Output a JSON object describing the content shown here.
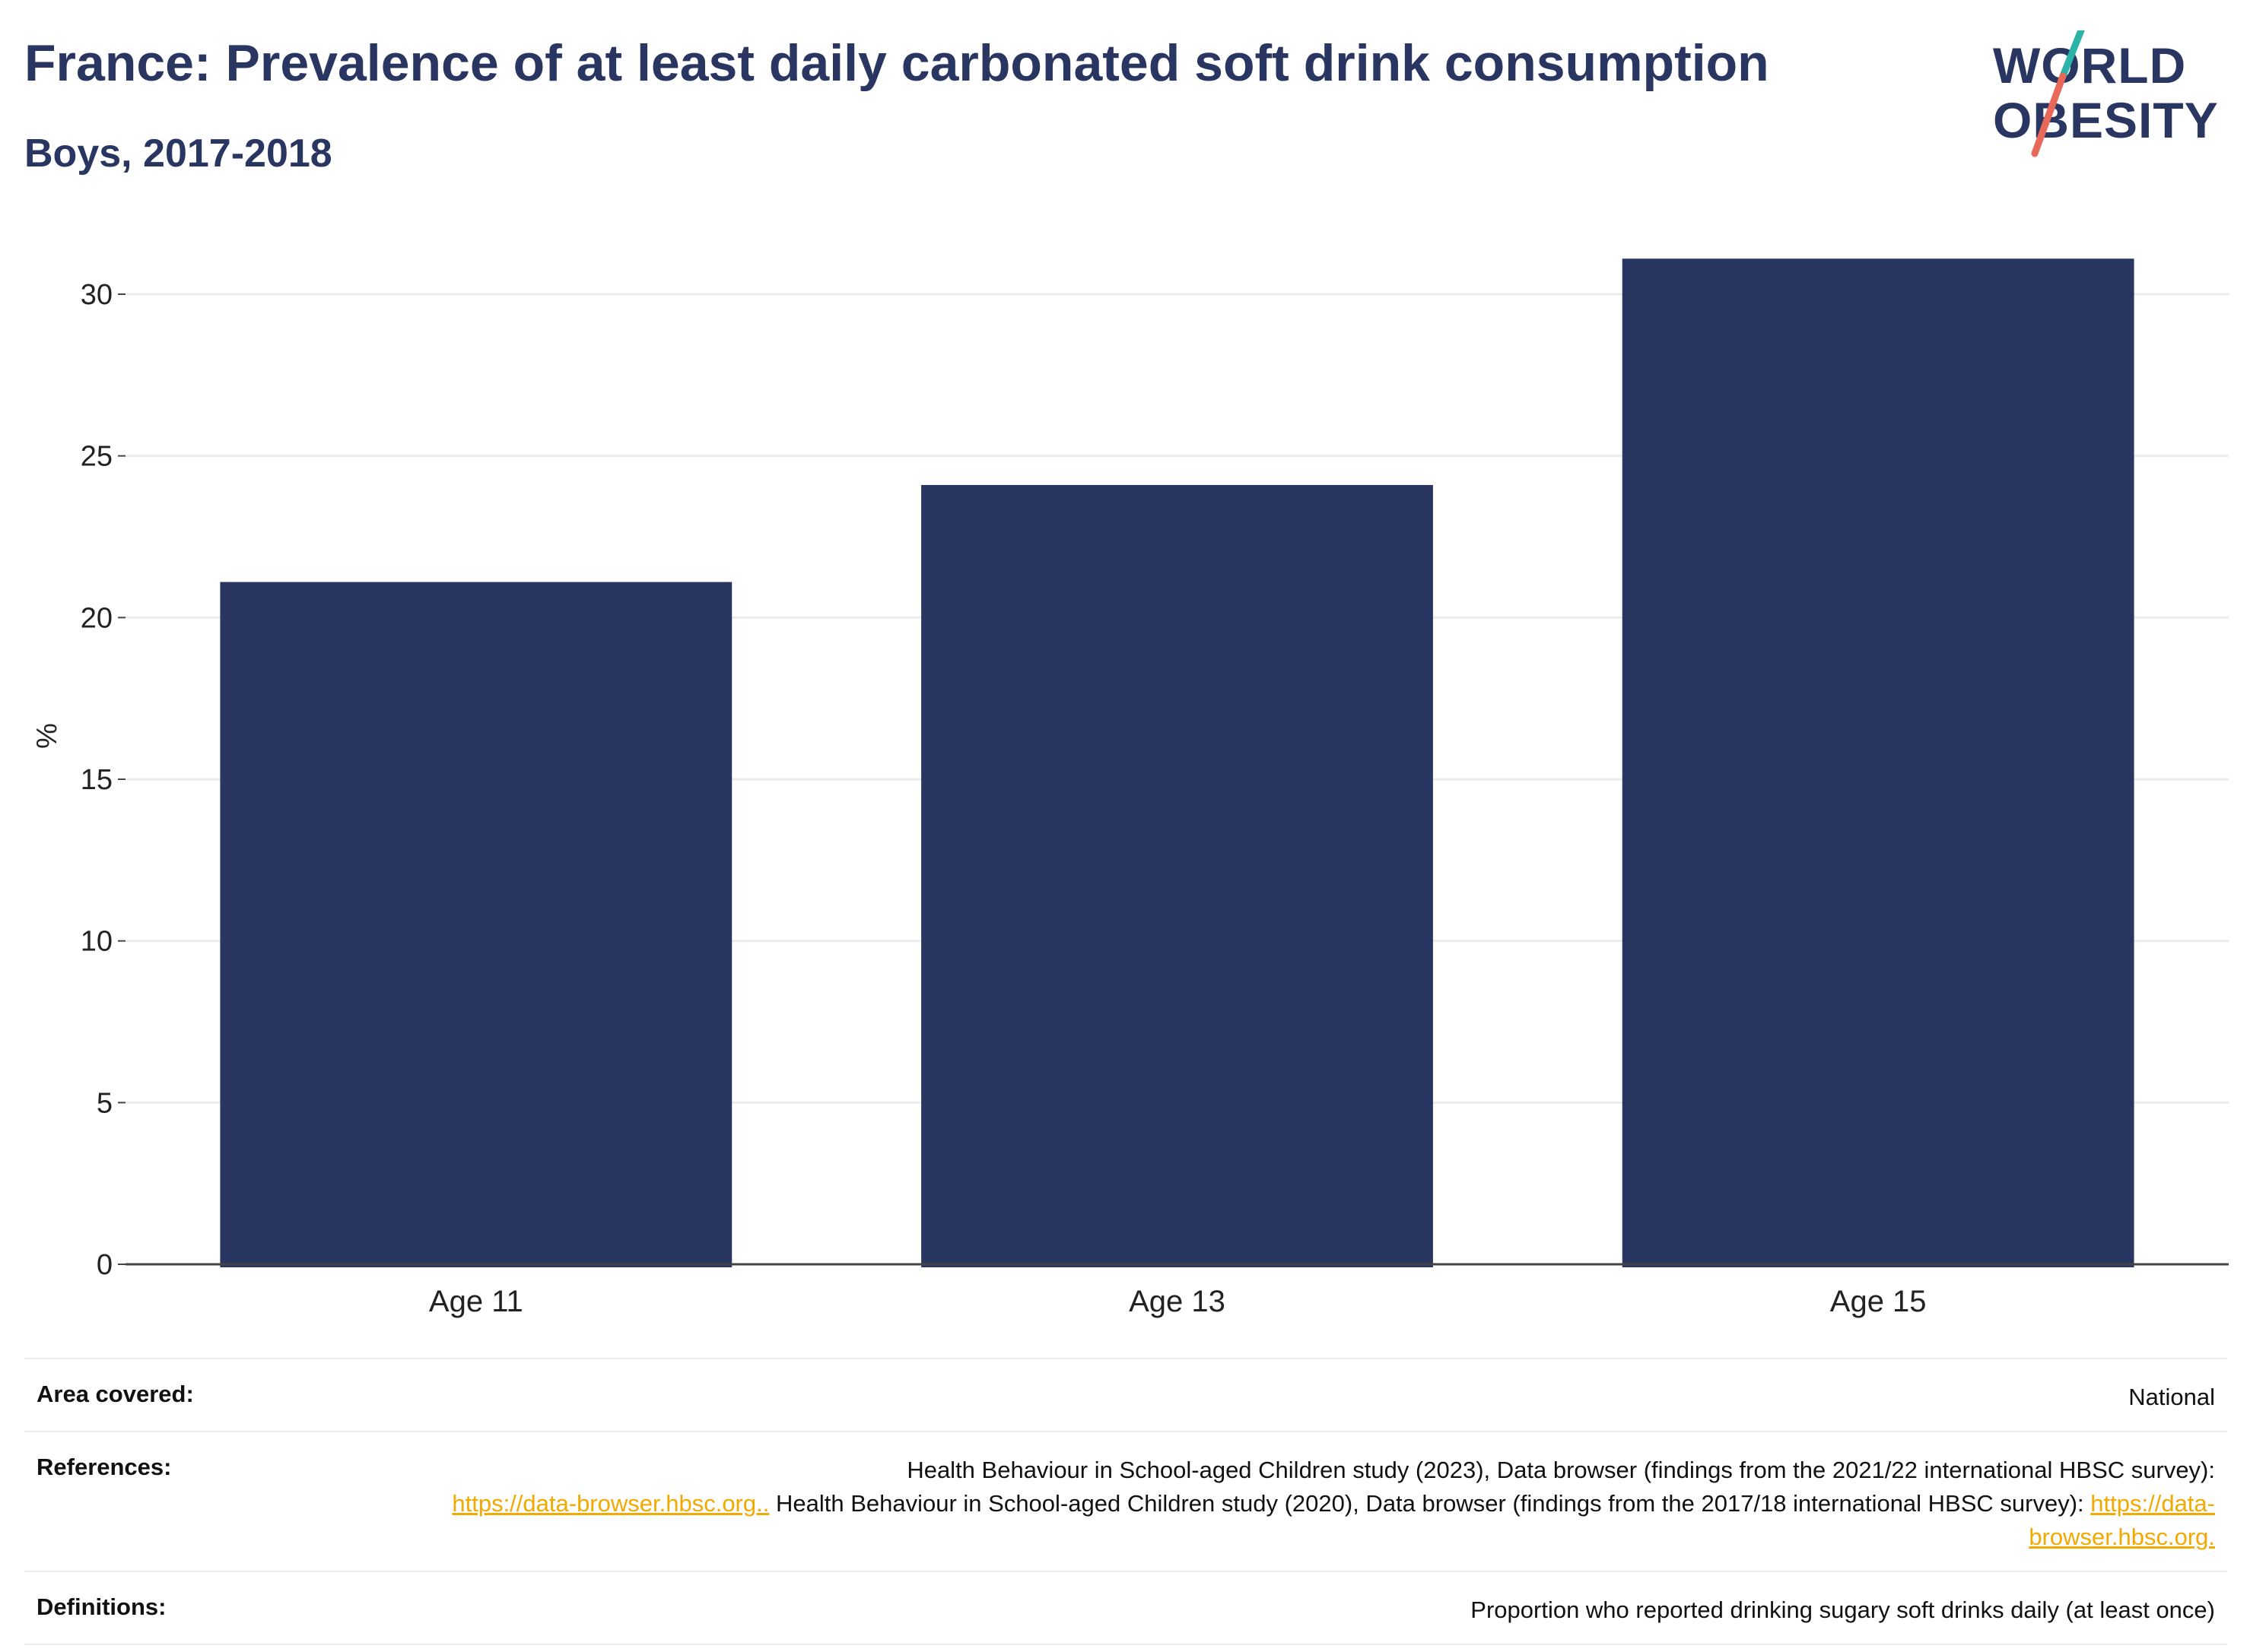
{
  "header": {
    "title": "France: Prevalence of at least daily carbonated soft drink consumption",
    "subtitle": "Boys, 2017-2018"
  },
  "logo": {
    "line1": "WORLD",
    "line2": "OBESITY",
    "colors": {
      "text": "#2a3662",
      "stroke_top": "#2ab3a8",
      "stroke_bottom": "#e8685a"
    }
  },
  "chart_data": {
    "type": "bar",
    "categories": [
      "Age 11",
      "Age 13",
      "Age 15"
    ],
    "values": [
      21.1,
      24.1,
      31.1
    ],
    "ylabel": "%",
    "ylim": [
      0,
      32.5
    ],
    "yticks": [
      0,
      5,
      10,
      15,
      20,
      25,
      30
    ],
    "grid": true,
    "bar_color": "#2a3662"
  },
  "info": {
    "area_label": "Area covered:",
    "area_value": "National",
    "references_label": "References:",
    "references_text_1": "Health Behaviour in School-aged Children study (2023), Data browser (findings from the 2021/22 international HBSC survey):",
    "references_link_1": "https://data-browser.hbsc.org..",
    "references_text_2": " Health Behaviour in School-aged Children study (2020), Data browser (findings from the 2017/18 international HBSC survey): ",
    "references_link_2": "https://data-browser.hbsc.org.",
    "definitions_label": "Definitions:",
    "definitions_value": "Proportion who reported drinking sugary soft drinks daily (at least once)",
    "link_color": "#f2a900"
  }
}
